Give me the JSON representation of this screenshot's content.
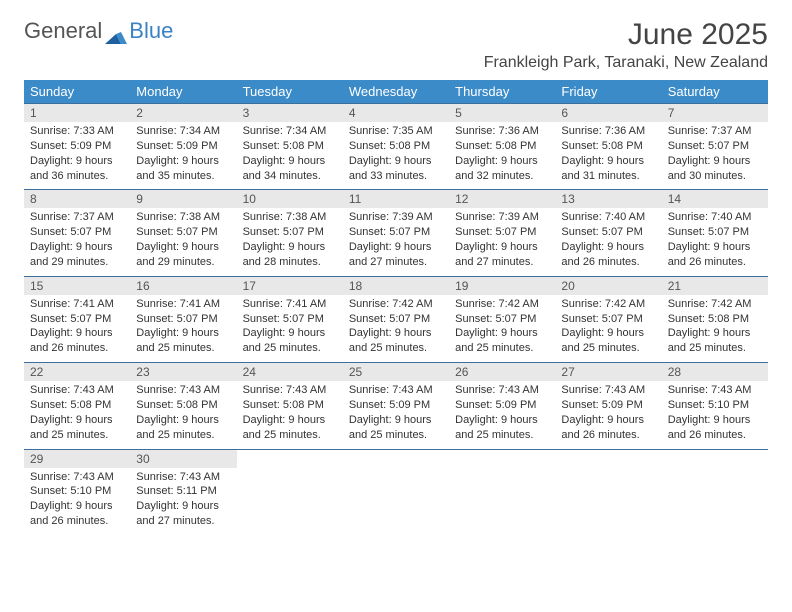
{
  "logo": {
    "text_general": "General",
    "text_blue": "Blue"
  },
  "title": "June 2025",
  "location": "Frankleigh Park, Taranaki, New Zealand",
  "header_bg": "#3b8bc9",
  "header_fg": "#ffffff",
  "daynum_bg": "#e8e8e8",
  "divider_color": "#3b6f9e",
  "day_names": [
    "Sunday",
    "Monday",
    "Tuesday",
    "Wednesday",
    "Thursday",
    "Friday",
    "Saturday"
  ],
  "weeks": [
    {
      "nums": [
        "1",
        "2",
        "3",
        "4",
        "5",
        "6",
        "7"
      ],
      "cells": [
        {
          "sunrise": "Sunrise: 7:33 AM",
          "sunset": "Sunset: 5:09 PM",
          "day1": "Daylight: 9 hours",
          "day2": "and 36 minutes."
        },
        {
          "sunrise": "Sunrise: 7:34 AM",
          "sunset": "Sunset: 5:09 PM",
          "day1": "Daylight: 9 hours",
          "day2": "and 35 minutes."
        },
        {
          "sunrise": "Sunrise: 7:34 AM",
          "sunset": "Sunset: 5:08 PM",
          "day1": "Daylight: 9 hours",
          "day2": "and 34 minutes."
        },
        {
          "sunrise": "Sunrise: 7:35 AM",
          "sunset": "Sunset: 5:08 PM",
          "day1": "Daylight: 9 hours",
          "day2": "and 33 minutes."
        },
        {
          "sunrise": "Sunrise: 7:36 AM",
          "sunset": "Sunset: 5:08 PM",
          "day1": "Daylight: 9 hours",
          "day2": "and 32 minutes."
        },
        {
          "sunrise": "Sunrise: 7:36 AM",
          "sunset": "Sunset: 5:08 PM",
          "day1": "Daylight: 9 hours",
          "day2": "and 31 minutes."
        },
        {
          "sunrise": "Sunrise: 7:37 AM",
          "sunset": "Sunset: 5:07 PM",
          "day1": "Daylight: 9 hours",
          "day2": "and 30 minutes."
        }
      ]
    },
    {
      "nums": [
        "8",
        "9",
        "10",
        "11",
        "12",
        "13",
        "14"
      ],
      "cells": [
        {
          "sunrise": "Sunrise: 7:37 AM",
          "sunset": "Sunset: 5:07 PM",
          "day1": "Daylight: 9 hours",
          "day2": "and 29 minutes."
        },
        {
          "sunrise": "Sunrise: 7:38 AM",
          "sunset": "Sunset: 5:07 PM",
          "day1": "Daylight: 9 hours",
          "day2": "and 29 minutes."
        },
        {
          "sunrise": "Sunrise: 7:38 AM",
          "sunset": "Sunset: 5:07 PM",
          "day1": "Daylight: 9 hours",
          "day2": "and 28 minutes."
        },
        {
          "sunrise": "Sunrise: 7:39 AM",
          "sunset": "Sunset: 5:07 PM",
          "day1": "Daylight: 9 hours",
          "day2": "and 27 minutes."
        },
        {
          "sunrise": "Sunrise: 7:39 AM",
          "sunset": "Sunset: 5:07 PM",
          "day1": "Daylight: 9 hours",
          "day2": "and 27 minutes."
        },
        {
          "sunrise": "Sunrise: 7:40 AM",
          "sunset": "Sunset: 5:07 PM",
          "day1": "Daylight: 9 hours",
          "day2": "and 26 minutes."
        },
        {
          "sunrise": "Sunrise: 7:40 AM",
          "sunset": "Sunset: 5:07 PM",
          "day1": "Daylight: 9 hours",
          "day2": "and 26 minutes."
        }
      ]
    },
    {
      "nums": [
        "15",
        "16",
        "17",
        "18",
        "19",
        "20",
        "21"
      ],
      "cells": [
        {
          "sunrise": "Sunrise: 7:41 AM",
          "sunset": "Sunset: 5:07 PM",
          "day1": "Daylight: 9 hours",
          "day2": "and 26 minutes."
        },
        {
          "sunrise": "Sunrise: 7:41 AM",
          "sunset": "Sunset: 5:07 PM",
          "day1": "Daylight: 9 hours",
          "day2": "and 25 minutes."
        },
        {
          "sunrise": "Sunrise: 7:41 AM",
          "sunset": "Sunset: 5:07 PM",
          "day1": "Daylight: 9 hours",
          "day2": "and 25 minutes."
        },
        {
          "sunrise": "Sunrise: 7:42 AM",
          "sunset": "Sunset: 5:07 PM",
          "day1": "Daylight: 9 hours",
          "day2": "and 25 minutes."
        },
        {
          "sunrise": "Sunrise: 7:42 AM",
          "sunset": "Sunset: 5:07 PM",
          "day1": "Daylight: 9 hours",
          "day2": "and 25 minutes."
        },
        {
          "sunrise": "Sunrise: 7:42 AM",
          "sunset": "Sunset: 5:07 PM",
          "day1": "Daylight: 9 hours",
          "day2": "and 25 minutes."
        },
        {
          "sunrise": "Sunrise: 7:42 AM",
          "sunset": "Sunset: 5:08 PM",
          "day1": "Daylight: 9 hours",
          "day2": "and 25 minutes."
        }
      ]
    },
    {
      "nums": [
        "22",
        "23",
        "24",
        "25",
        "26",
        "27",
        "28"
      ],
      "cells": [
        {
          "sunrise": "Sunrise: 7:43 AM",
          "sunset": "Sunset: 5:08 PM",
          "day1": "Daylight: 9 hours",
          "day2": "and 25 minutes."
        },
        {
          "sunrise": "Sunrise: 7:43 AM",
          "sunset": "Sunset: 5:08 PM",
          "day1": "Daylight: 9 hours",
          "day2": "and 25 minutes."
        },
        {
          "sunrise": "Sunrise: 7:43 AM",
          "sunset": "Sunset: 5:08 PM",
          "day1": "Daylight: 9 hours",
          "day2": "and 25 minutes."
        },
        {
          "sunrise": "Sunrise: 7:43 AM",
          "sunset": "Sunset: 5:09 PM",
          "day1": "Daylight: 9 hours",
          "day2": "and 25 minutes."
        },
        {
          "sunrise": "Sunrise: 7:43 AM",
          "sunset": "Sunset: 5:09 PM",
          "day1": "Daylight: 9 hours",
          "day2": "and 25 minutes."
        },
        {
          "sunrise": "Sunrise: 7:43 AM",
          "sunset": "Sunset: 5:09 PM",
          "day1": "Daylight: 9 hours",
          "day2": "and 26 minutes."
        },
        {
          "sunrise": "Sunrise: 7:43 AM",
          "sunset": "Sunset: 5:10 PM",
          "day1": "Daylight: 9 hours",
          "day2": "and 26 minutes."
        }
      ]
    },
    {
      "nums": [
        "29",
        "30",
        "",
        "",
        "",
        "",
        ""
      ],
      "cells": [
        {
          "sunrise": "Sunrise: 7:43 AM",
          "sunset": "Sunset: 5:10 PM",
          "day1": "Daylight: 9 hours",
          "day2": "and 26 minutes."
        },
        {
          "sunrise": "Sunrise: 7:43 AM",
          "sunset": "Sunset: 5:11 PM",
          "day1": "Daylight: 9 hours",
          "day2": "and 27 minutes."
        },
        null,
        null,
        null,
        null,
        null
      ]
    }
  ]
}
